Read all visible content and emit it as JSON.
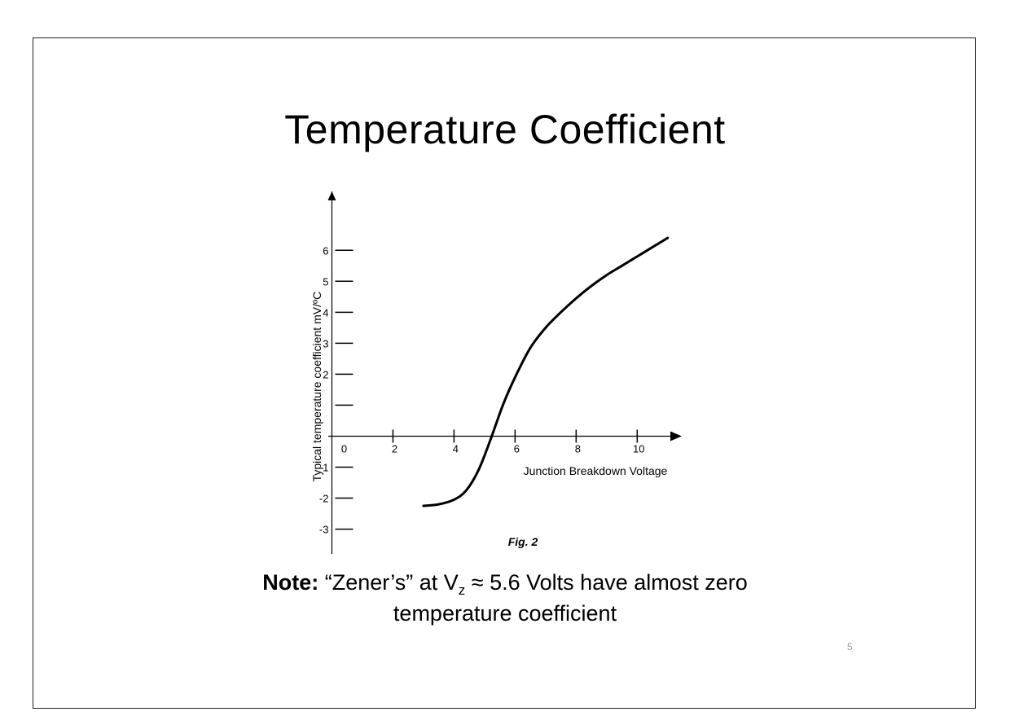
{
  "slide": {
    "title": "Temperature Coefficient",
    "note_bold": "Note:",
    "note_part1": " “Zener’s” at V",
    "note_sub": "z",
    "note_part2": " ≈ 5.6 Volts have almost zero",
    "note_line2": "temperature coefficient",
    "page_number": "5"
  },
  "chart_data": {
    "type": "line",
    "title": "",
    "caption": "Fig. 2",
    "xlabel": "Junction Breakdown Voltage",
    "ylabel": "Typical temperature coefficient mV/ºC",
    "xlim": [
      -0.8,
      11.3
    ],
    "ylim": [
      -3.8,
      7.9
    ],
    "x_ticks": [
      {
        "value": 0,
        "label": "0",
        "tick": false
      },
      {
        "value": 2,
        "label": "2",
        "tick": true
      },
      {
        "value": 4,
        "label": "4",
        "tick": true
      },
      {
        "value": 6,
        "label": "6",
        "tick": true
      },
      {
        "value": 8,
        "label": "8",
        "tick": true
      },
      {
        "value": 10,
        "label": "10",
        "tick": true
      }
    ],
    "y_ticks": [
      {
        "value": 6,
        "label": "6"
      },
      {
        "value": 5,
        "label": "5"
      },
      {
        "value": 4,
        "label": "4"
      },
      {
        "value": 3,
        "label": "3"
      },
      {
        "value": 2,
        "label": "2"
      },
      {
        "value": 1,
        "label": ""
      },
      {
        "value": -1,
        "label": "-1"
      },
      {
        "value": -2,
        "label": "-2"
      },
      {
        "value": -3,
        "label": "-3"
      }
    ],
    "series": [
      {
        "x": [
          3.0,
          3.5,
          4.0,
          4.4,
          4.8,
          5.2,
          5.6,
          6.0,
          6.5,
          7.0,
          7.5,
          8.0,
          8.5,
          9.0,
          9.5,
          10.0,
          10.5,
          11.0
        ],
        "y": [
          -2.25,
          -2.2,
          -2.05,
          -1.75,
          -1.1,
          -0.1,
          1.0,
          1.9,
          2.85,
          3.5,
          4.0,
          4.45,
          4.85,
          5.2,
          5.5,
          5.8,
          6.1,
          6.4
        ]
      }
    ]
  }
}
